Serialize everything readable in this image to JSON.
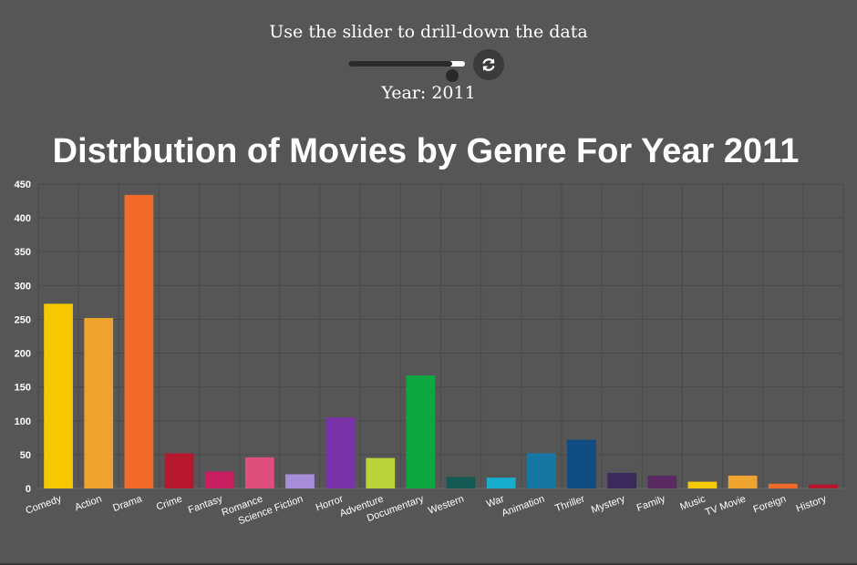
{
  "controls": {
    "instruction": "Use the slider to drill-down the data",
    "slider": {
      "min": 1916,
      "max": 2017,
      "value": 2011
    },
    "year_label": "Year: 2011",
    "refresh_icon": "refresh-icon"
  },
  "chart_data": {
    "type": "bar",
    "title": "Distrbution of Movies by Genre For Year 2011",
    "xlabel": "",
    "ylabel": "",
    "ylim": [
      0,
      450
    ],
    "yticks": [
      0,
      50,
      100,
      150,
      200,
      250,
      300,
      350,
      400,
      450
    ],
    "grid": true,
    "legend": "none",
    "categories": [
      "Comedy",
      "Action",
      "Drama",
      "Crime",
      "Fantasy",
      "Romance",
      "Science Fiction",
      "Horror",
      "Adventure",
      "Documentary",
      "Western",
      "War",
      "Animation",
      "Thriller",
      "Mystery",
      "Family",
      "Music",
      "TV Movie",
      "Foreign",
      "History"
    ],
    "values": [
      273,
      252,
      434,
      52,
      25,
      46,
      21,
      105,
      45,
      167,
      17,
      16,
      52,
      72,
      23,
      19,
      10,
      19,
      7,
      6
    ],
    "colors": [
      "#f5c800",
      "#f0a430",
      "#f26b2a",
      "#b5172d",
      "#c81d5e",
      "#de4f7e",
      "#a88ed8",
      "#7a32a8",
      "#bcd43c",
      "#0da640",
      "#155a52",
      "#17adcf",
      "#1777a3",
      "#0f4c81",
      "#3b2a5c",
      "#5a2a63",
      "#f5c800",
      "#f0a430",
      "#f26b2a",
      "#b5172d"
    ]
  }
}
